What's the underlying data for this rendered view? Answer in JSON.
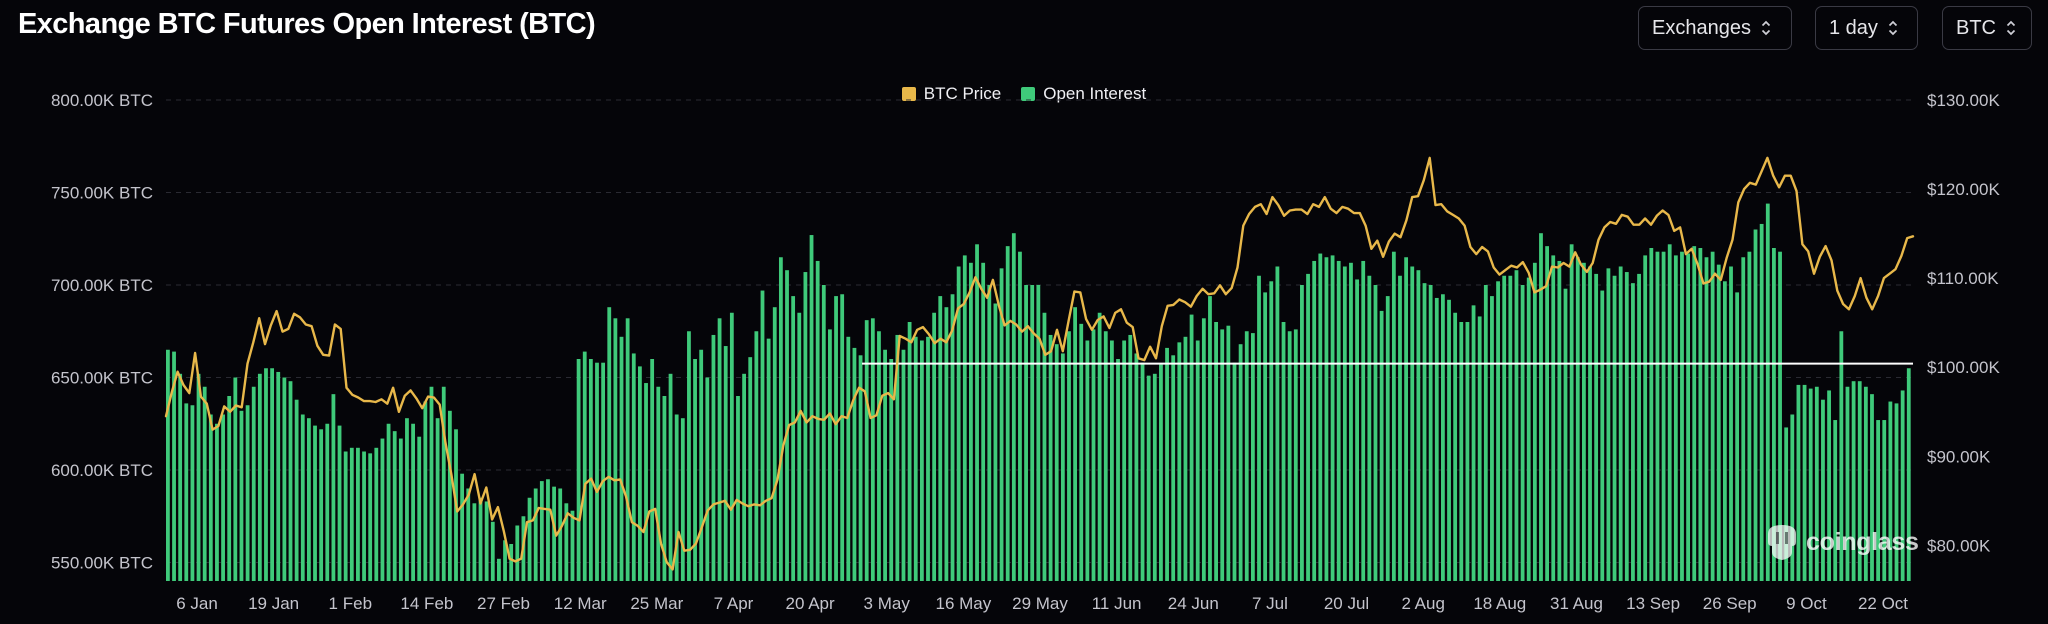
{
  "header": {
    "title": "Exchange BTC Futures Open Interest (BTC)",
    "selects": [
      {
        "id": "exchanges",
        "value": "Exchanges"
      },
      {
        "id": "interval",
        "value": "1 day"
      },
      {
        "id": "unit",
        "value": "BTC"
      }
    ]
  },
  "watermark": "coinglass",
  "colors": {
    "background": "#050509",
    "price_line": "#e8b84a",
    "open_interest_bar": "#3fca7a",
    "reference_line": "#ffffff",
    "grid": "#2a2a32"
  },
  "chart_data": {
    "type": "bar",
    "legend": [
      {
        "label": "BTC Price",
        "color": "#e8b84a"
      },
      {
        "label": "Open Interest",
        "color": "#3fca7a"
      }
    ],
    "legend_position": "top-center",
    "grid": "horizontal dashed",
    "x_tick_labels": [
      "6 Jan",
      "19 Jan",
      "1 Feb",
      "14 Feb",
      "27 Feb",
      "12 Mar",
      "25 Mar",
      "7 Apr",
      "20 Apr",
      "3 May",
      "16 May",
      "29 May",
      "11 Jun",
      "24 Jun",
      "7 Jul",
      "20 Jul",
      "2 Aug",
      "18 Aug",
      "31 Aug",
      "13 Sep",
      "26 Sep",
      "9 Oct",
      "22 Oct"
    ],
    "y_left": {
      "ticks": [
        "800.00K BTC",
        "750.00K BTC",
        "700.00K BTC",
        "650.00K BTC",
        "600.00K BTC",
        "550.00K BTC"
      ],
      "range": [
        540,
        800
      ],
      "unit": "K BTC"
    },
    "y_right": {
      "ticks": [
        "$130.00K",
        "$120.00K",
        "$110.00K",
        "$100.00K",
        "$90.00K",
        "$80.00K"
      ],
      "range": [
        76,
        130
      ],
      "unit": "K USD"
    },
    "reference_line": {
      "axis": "right",
      "value": 100.4
    },
    "series": [
      {
        "name": "Open Interest",
        "type": "bar",
        "axis": "left",
        "unit": "K BTC",
        "values": [
          665,
          664,
          652,
          636,
          635,
          652,
          645,
          630,
          625,
          630,
          640,
          650,
          632,
          635,
          645,
          652,
          655,
          655,
          653,
          650,
          648,
          638,
          630,
          628,
          624,
          622,
          625,
          641,
          624,
          610,
          612,
          612,
          610,
          609,
          612,
          617,
          625,
          621,
          617,
          628,
          625,
          618,
          637,
          645,
          628,
          645,
          632,
          622,
          598,
          590,
          582,
          585,
          583,
          572,
          552,
          562,
          560,
          570,
          575,
          585,
          590,
          594,
          595,
          591,
          590,
          582,
          578,
          660,
          664,
          660,
          658,
          658,
          688,
          682,
          672,
          682,
          663,
          656,
          647,
          660,
          645,
          640,
          652,
          630,
          628,
          675,
          660,
          665,
          650,
          673,
          682,
          667,
          685,
          640,
          652,
          661,
          675,
          697,
          671,
          688,
          715,
          708,
          694,
          685,
          707,
          727,
          713,
          700,
          676,
          694,
          695,
          672,
          666,
          662,
          681,
          682,
          675,
          665,
          660,
          673,
          665,
          680,
          672,
          670,
          672,
          685,
          694,
          688,
          695,
          710,
          716,
          712,
          722,
          712,
          700,
          690,
          709,
          721,
          728,
          718,
          700,
          700,
          700,
          685,
          673,
          668,
          663,
          675,
          688,
          679,
          670,
          676,
          685,
          675,
          670,
          660,
          670,
          673,
          663,
          658,
          651,
          652,
          657,
          666,
          662,
          669,
          672,
          684,
          670,
          682,
          694,
          680,
          676,
          678,
          658,
          668,
          675,
          674,
          705,
          696,
          702,
          710,
          680,
          675,
          676,
          700,
          706,
          713,
          717,
          715,
          716,
          713,
          710,
          712,
          703,
          713,
          705,
          700,
          686,
          694,
          718,
          705,
          715,
          710,
          708,
          701,
          700,
          693,
          695,
          692,
          685,
          680,
          680,
          689,
          683,
          700,
          694,
          702,
          705,
          705,
          708,
          700,
          704,
          712,
          728,
          721,
          716,
          713,
          698,
          722,
          715,
          712,
          710,
          706,
          697,
          709,
          705,
          710,
          707,
          701,
          706,
          716,
          720,
          718,
          718,
          722,
          716,
          718,
          717,
          721,
          720,
          715,
          718,
          711,
          702,
          710,
          696,
          715,
          718,
          730,
          733,
          744,
          720,
          718,
          623,
          630,
          646,
          646,
          644,
          645,
          638,
          643,
          627,
          675,
          645,
          648,
          648,
          645,
          641,
          627,
          627,
          637,
          636,
          643,
          655
        ]
      },
      {
        "name": "BTC Price",
        "type": "line",
        "axis": "right",
        "unit": "K USD",
        "values": [
          94.5,
          97.2,
          99.5,
          98.0,
          97.1,
          101.6,
          96.7,
          95.9,
          93.0,
          93.4,
          95.6,
          95.0,
          95.7,
          95.5,
          100.4,
          102.8,
          105.5,
          102.6,
          104.7,
          106.3,
          104.0,
          104.3,
          106.0,
          105.6,
          104.8,
          104.6,
          102.4,
          101.4,
          101.3,
          104.8,
          104.3,
          97.7,
          96.9,
          96.6,
          96.2,
          96.2,
          96.1,
          96.4,
          95.9,
          97.7,
          95.0,
          96.8,
          97.4,
          96.5,
          95.4,
          96.7,
          96.6,
          95.8,
          91.5,
          88.0,
          83.8,
          84.6,
          85.7,
          88.0,
          84.7,
          86.5,
          82.9,
          84.3,
          81.6,
          78.5,
          78.2,
          78.5,
          82.6,
          82.8,
          84.2,
          84.1,
          84.0,
          81.1,
          82.2,
          83.6,
          83.1,
          82.8,
          86.9,
          87.5,
          86.0,
          87.2,
          87.7,
          87.3,
          87.4,
          85.5,
          82.6,
          82.2,
          81.5,
          83.8,
          84.1,
          80.2,
          78.1,
          77.3,
          81.5,
          79.4,
          79.5,
          80.2,
          82.0,
          83.9,
          84.6,
          84.8,
          85.0,
          84.0,
          85.1,
          84.7,
          84.4,
          84.6,
          84.5,
          85.0,
          85.3,
          87.4,
          91.2,
          93.5,
          93.8,
          95.1,
          93.8,
          94.5,
          94.2,
          94.1,
          94.8,
          93.6,
          94.5,
          94.3,
          96.3,
          97.7,
          97.3,
          94.3,
          94.6,
          96.8,
          97.1,
          96.4,
          103.5,
          103.2,
          102.8,
          104.2,
          104.5,
          103.7,
          102.7,
          103.2,
          102.8,
          104.1,
          106.6,
          107.1,
          108.4,
          110.1,
          108.8,
          107.8,
          109.8,
          107.0,
          104.7,
          105.2,
          104.8,
          104.0,
          104.6,
          103.8,
          103.2,
          101.4,
          101.8,
          104.2,
          101.8,
          105.2,
          108.5,
          108.4,
          105.4,
          104.2,
          105.3,
          105.7,
          104.4,
          106.1,
          106.5,
          105.0,
          104.5,
          101.0,
          100.8,
          102.3,
          101.0,
          104.6,
          106.9,
          107.0,
          107.6,
          107.3,
          106.8,
          108.0,
          108.8,
          108.2,
          108.3,
          109.2,
          108.2,
          108.9,
          111.2,
          115.9,
          117.2,
          118.0,
          118.3,
          117.2,
          119.1,
          118.2,
          117.0,
          117.6,
          117.7,
          117.7,
          117.2,
          118.3,
          118.0,
          119.1,
          117.8,
          117.3,
          118.0,
          117.8,
          117.3,
          117.3,
          115.9,
          113.3,
          114.2,
          112.4,
          114.1,
          115.0,
          114.6,
          116.5,
          119.1,
          119.2,
          121.0,
          123.5,
          118.2,
          118.3,
          117.5,
          117.1,
          116.7,
          115.9,
          113.5,
          112.7,
          113.5,
          113.0,
          111.2,
          110.4,
          110.9,
          111.4,
          111.2,
          111.8,
          110.6,
          108.4,
          108.7,
          109.1,
          111.3,
          111.2,
          111.7,
          111.3,
          112.9,
          111.5,
          110.7,
          111.7,
          114.3,
          115.7,
          116.3,
          116.1,
          117.1,
          116.9,
          116.0,
          116.0,
          116.7,
          116.0,
          117.0,
          117.6,
          117.1,
          115.3,
          115.7,
          112.7,
          113.3,
          111.6,
          109.4,
          109.6,
          110.5,
          109.8,
          112.3,
          114.3,
          118.5,
          120.0,
          120.7,
          120.5,
          122.0,
          123.5,
          121.5,
          120.2,
          121.5,
          121.5,
          119.8,
          113.8,
          113.0,
          110.5,
          112.4,
          113.6,
          112.0,
          108.6,
          107.1,
          106.5,
          108.0,
          110.0,
          107.8,
          106.5,
          108.0,
          110.0,
          110.5,
          111.0,
          112.5,
          114.5,
          114.7
        ]
      }
    ]
  }
}
